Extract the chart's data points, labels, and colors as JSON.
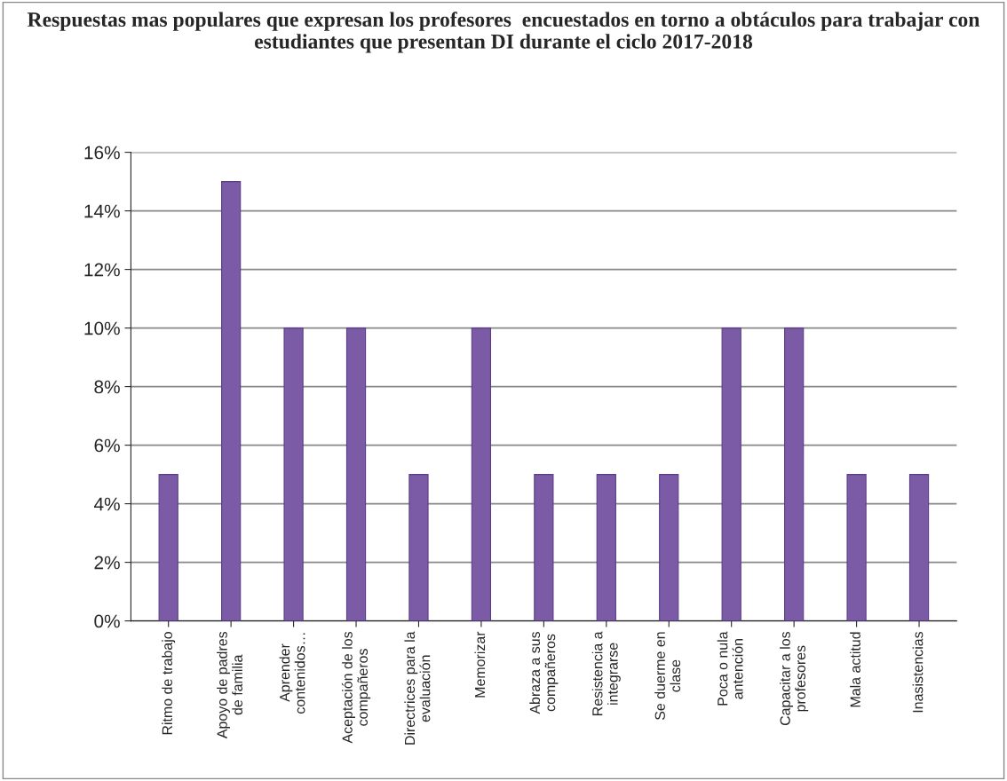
{
  "chart_data": {
    "type": "bar",
    "title": "Respuestas mas populares que expresan los profesores  encuestados en torno a obtáculos para trabajar con estudiantes que presentan DI durante el ciclo 2017-2018",
    "categories": [
      "Ritmo de trabajo",
      "Apoyo de padres\nde familia",
      "Aprender\ncontenidos…",
      "Aceptación de los\ncompañeros",
      "Directrices para la\nevaluación",
      "Memorizar",
      "Abraza a sus\ncompañeros",
      "Resistencia a\nintegrarse",
      "Se duerme en\nclase",
      "Poca o nula\nantención",
      "Capacitar a los\nprofesores",
      "Mala actitud",
      "Inasistencias"
    ],
    "values": [
      5,
      15,
      10,
      10,
      5,
      10,
      5,
      5,
      5,
      10,
      10,
      5,
      5
    ],
    "color": "#7b5aa6",
    "ylim": [
      0,
      16
    ],
    "yticks": [
      {
        "value": 0,
        "label": "0%"
      },
      {
        "value": 2,
        "label": "2%"
      },
      {
        "value": 4,
        "label": "4%"
      },
      {
        "value": 6,
        "label": "6%"
      },
      {
        "value": 8,
        "label": "8%"
      },
      {
        "value": 10,
        "label": "10%"
      },
      {
        "value": 12,
        "label": "12%"
      },
      {
        "value": 14,
        "label": "14%"
      },
      {
        "value": 16,
        "label": "16%"
      }
    ],
    "grid": "y"
  }
}
